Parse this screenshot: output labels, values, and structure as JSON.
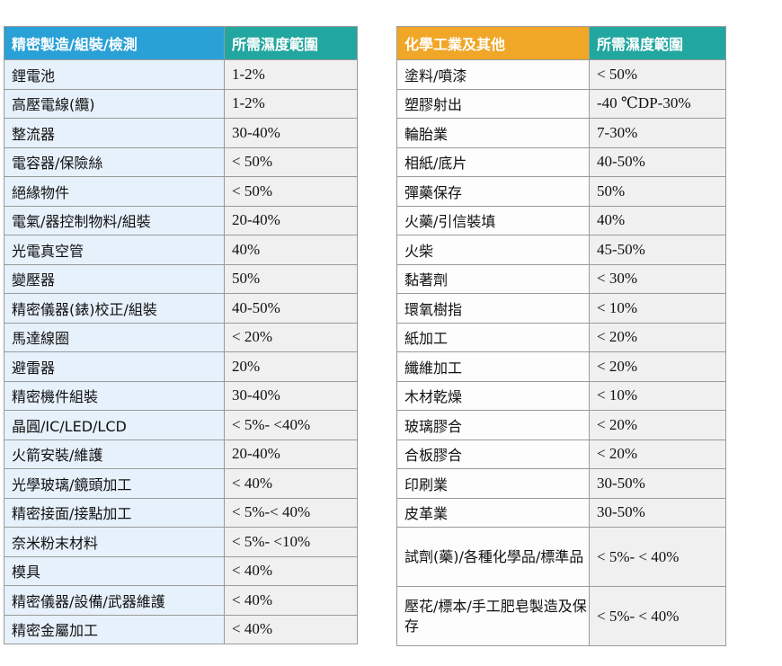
{
  "left_table": {
    "headers": [
      "精密製造/組裝/檢測",
      "所需濕度範圍"
    ],
    "rows": [
      [
        "鋰電池",
        "1-2%"
      ],
      [
        "高壓電線(纜)",
        "1-2%"
      ],
      [
        "整流器",
        "30-40%"
      ],
      [
        "電容器/保險絲",
        "< 50%"
      ],
      [
        "絕緣物件",
        "< 50%"
      ],
      [
        "電氣/器控制物料/組裝",
        "20-40%"
      ],
      [
        "光電真空管",
        "40%"
      ],
      [
        "變壓器",
        "50%"
      ],
      [
        "精密儀器(錶)校正/組裝",
        "40-50%"
      ],
      [
        "馬達線圈",
        "< 20%"
      ],
      [
        "避雷器",
        "20%"
      ],
      [
        "精密機件組裝",
        "30-40%"
      ],
      [
        "晶圓/IC/LED/LCD",
        "< 5%- <40%"
      ],
      [
        "火箭安裝/維護",
        "20-40%"
      ],
      [
        "光學玻璃/鏡頭加工",
        "< 40%"
      ],
      [
        "精密接面/接點加工",
        "< 5%-< 40%"
      ],
      [
        "奈米粉末材料",
        "< 5%- <10%"
      ],
      [
        "模具",
        "< 40%"
      ],
      [
        "精密儀器/設備/武器維護",
        "< 40%"
      ],
      [
        "精密金屬加工",
        "< 40%"
      ]
    ]
  },
  "right_table": {
    "headers": [
      "化學工業及其他",
      "所需濕度範圍"
    ],
    "rows": [
      [
        "塗料/噴漆",
        "< 50%"
      ],
      [
        "塑膠射出",
        "-40 ℃DP-30%"
      ],
      [
        "輪胎業",
        "7-30%"
      ],
      [
        "相紙/底片",
        "40-50%"
      ],
      [
        "彈藥保存",
        "50%"
      ],
      [
        "火藥/引信裝填",
        "40%"
      ],
      [
        "火柴",
        "45-50%"
      ],
      [
        "黏著劑",
        "< 30%"
      ],
      [
        "環氧樹指",
        "< 10%"
      ],
      [
        "紙加工",
        "< 20%"
      ],
      [
        "纖維加工",
        "< 20%"
      ],
      [
        "木材乾燥",
        "< 10%"
      ],
      [
        "玻璃膠合",
        "< 20%"
      ],
      [
        "合板膠合",
        "< 20%"
      ],
      [
        "印刷業",
        "30-50%"
      ],
      [
        "皮革業",
        "30-50%"
      ]
    ],
    "tall_rows": [
      [
        "試劑(藥)/各種化學品/標準品",
        "< 5%- < 40%"
      ],
      [
        "壓花/標本/手工肥皂製造及保存",
        "< 5%- < 40%"
      ]
    ]
  }
}
